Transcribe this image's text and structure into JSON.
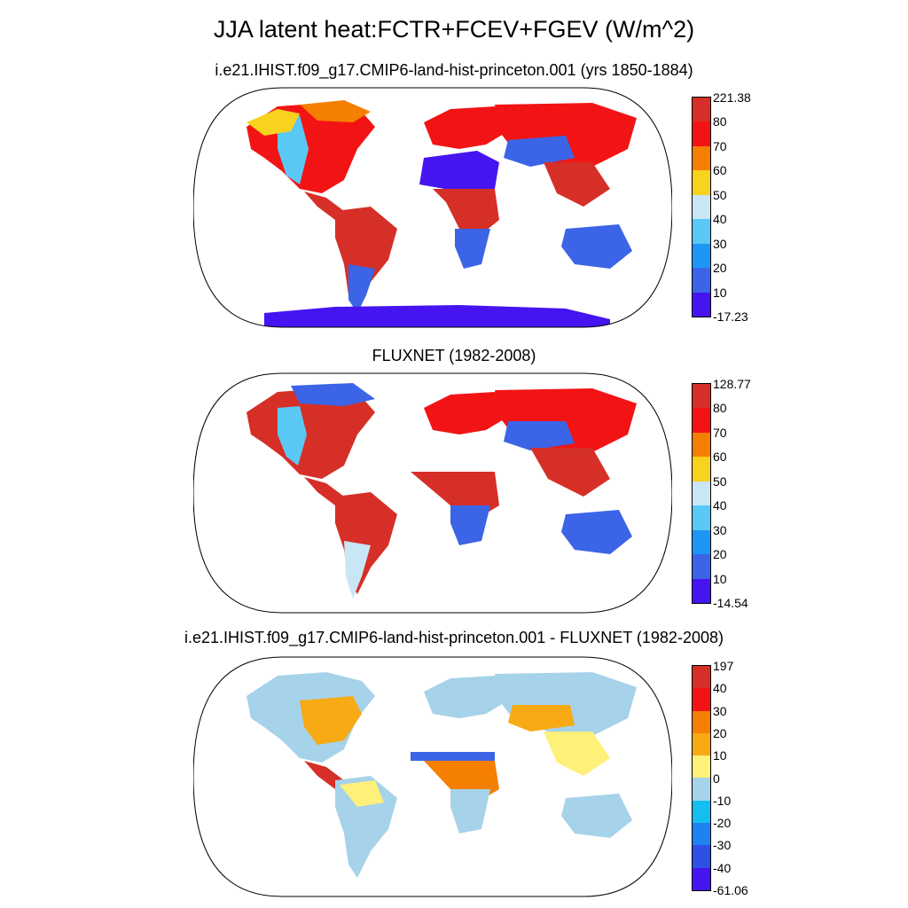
{
  "title": "JJA latent heat:FCTR+FCEV+FGEV (W/m^2)",
  "panels": [
    {
      "title": "i.e21.IHIST.f09_g17.CMIP6-land-hist-princeton.001 (yrs 1850-1884)",
      "colorbar_labels": [
        "221.38",
        "80",
        "70",
        "60",
        "50",
        "40",
        "30",
        "20",
        "10",
        "-17.23"
      ],
      "colorbar_colors": [
        "#d62f27",
        "#f21414",
        "#f57f00",
        "#f7d21e",
        "#c8e6f5",
        "#5ac8f5",
        "#1e96f5",
        "#3c64e6",
        "#4614f0"
      ]
    },
    {
      "title": "FLUXNET (1982-2008)",
      "colorbar_labels": [
        "128.77",
        "80",
        "70",
        "60",
        "50",
        "40",
        "30",
        "20",
        "10",
        "-14.54"
      ],
      "colorbar_colors": [
        "#d62f27",
        "#f21414",
        "#f57f00",
        "#f7d21e",
        "#c8e6f5",
        "#5ac8f5",
        "#1e96f5",
        "#3c64e6",
        "#4614f0"
      ]
    },
    {
      "title": "i.e21.IHIST.f09_g17.CMIP6-land-hist-princeton.001 - FLUXNET (1982-2008)",
      "colorbar_labels": [
        "197",
        "40",
        "30",
        "20",
        "10",
        "0",
        "-10",
        "-20",
        "-30",
        "-40",
        "-61.06"
      ],
      "colorbar_colors": [
        "#d62f27",
        "#f21414",
        "#f57f00",
        "#f7aa14",
        "#fff07a",
        "#a6d2ea",
        "#14bef0",
        "#1e82f0",
        "#2e50e6",
        "#4614f0"
      ]
    }
  ]
}
